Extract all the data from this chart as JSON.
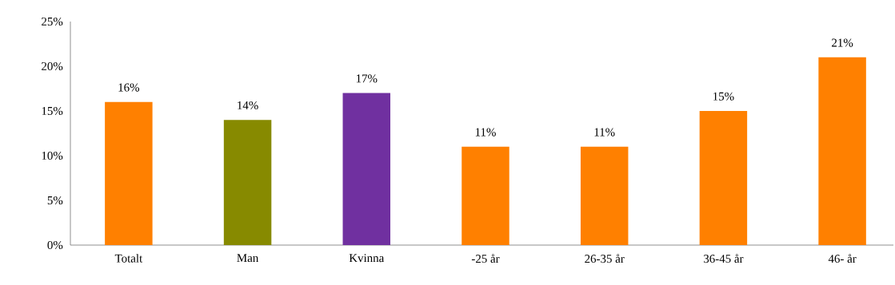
{
  "chart_data": {
    "type": "bar",
    "categories": [
      "Totalt",
      "Man",
      "Kvinna",
      "-25 år",
      "26-35 år",
      "36-45 år",
      "46- år"
    ],
    "values": [
      16,
      14,
      17,
      11,
      11,
      15,
      21
    ],
    "colors": [
      "#ff8000",
      "#878a00",
      "#7030a0",
      "#ff8000",
      "#ff8000",
      "#ff8000",
      "#ff8000"
    ],
    "value_labels": [
      "16%",
      "14%",
      "17%",
      "11%",
      "11%",
      "15%",
      "21%"
    ],
    "ylim": [
      0,
      25
    ],
    "yticks": [
      {
        "value": 0,
        "label": "0%"
      },
      {
        "value": 5,
        "label": "5%"
      },
      {
        "value": 10,
        "label": "10%"
      },
      {
        "value": 15,
        "label": "15%"
      },
      {
        "value": 20,
        "label": "20%"
      },
      {
        "value": 25,
        "label": "25%"
      }
    ]
  }
}
